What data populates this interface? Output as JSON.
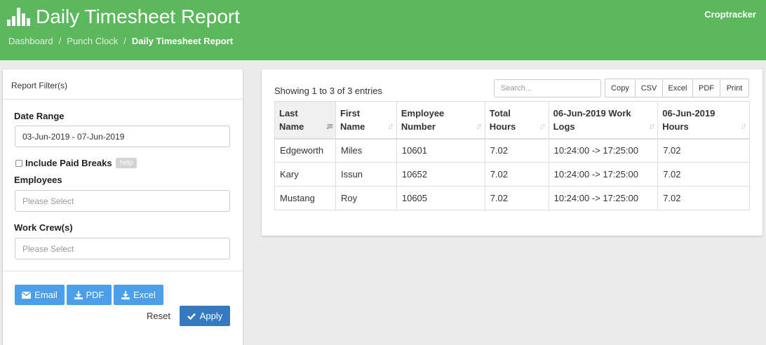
{
  "header": {
    "title": "Daily Timesheet Report",
    "brand": "Croptracker",
    "breadcrumb": [
      "Dashboard",
      "Punch Clock",
      "Daily Timesheet Report"
    ],
    "separator": "/"
  },
  "filters": {
    "heading": "Report Filter(s)",
    "date_range_label": "Date Range",
    "date_range_value": "03-Jun-2019 - 07-Jun-2019",
    "include_paid_breaks_label": "Include Paid Breaks",
    "help_label": "help",
    "employees_label": "Employees",
    "employees_placeholder": "Please Select",
    "work_crews_label": "Work Crew(s)",
    "work_crews_placeholder": "Please Select",
    "email_label": "Email",
    "pdf_label": "PDF",
    "excel_label": "Excel",
    "reset_label": "Reset",
    "apply_label": "Apply"
  },
  "table": {
    "info": "Showing 1 to 3 of 3 entries",
    "search_placeholder": "Search...",
    "export_buttons": [
      "Copy",
      "CSV",
      "Excel",
      "PDF",
      "Print"
    ],
    "columns": [
      "Last Name",
      "First Name",
      "Employee Number",
      "Total Hours",
      "06-Jun-2019 Work Logs",
      "06-Jun-2019 Hours"
    ],
    "rows": [
      [
        "Edgeworth",
        "Miles",
        "10601",
        "7.02",
        "10:24:00 -> 17:25:00",
        "7.02"
      ],
      [
        "Kary",
        "Issun",
        "10652",
        "7.02",
        "10:24:00 -> 17:25:00",
        "7.02"
      ],
      [
        "Mustang",
        "Roy",
        "10605",
        "7.02",
        "10:24:00 -> 17:25:00",
        "7.02"
      ]
    ]
  },
  "colors": {
    "header_green": "#5cb85c",
    "button_blue": "#4a9fe8",
    "apply_blue": "#3579c0"
  },
  "icons": {
    "logo": "bar-chart-icon",
    "email": "envelope-icon",
    "download": "download-icon",
    "apply": "check-icon",
    "sort": "sort-icon"
  }
}
